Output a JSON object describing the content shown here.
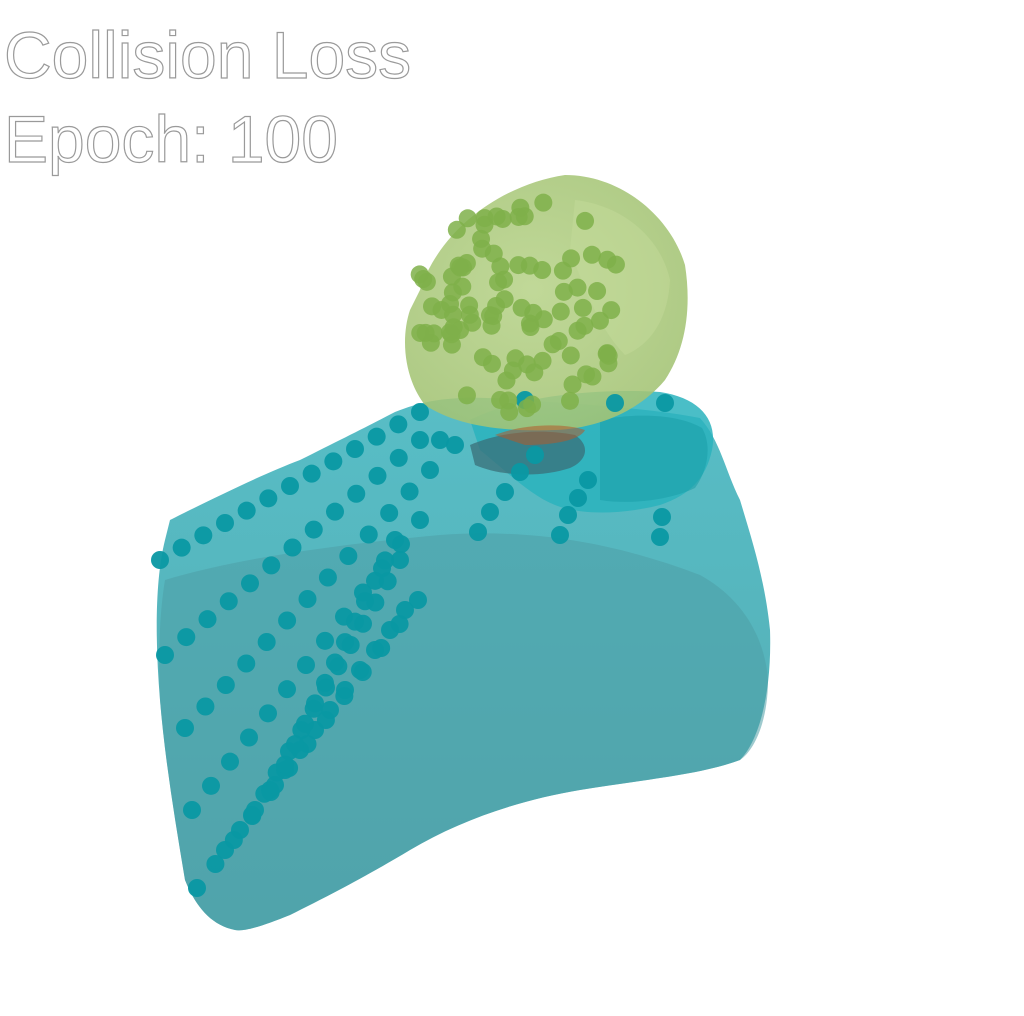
{
  "overlay": {
    "title": "Collision Loss",
    "epoch": "Epoch: 100"
  },
  "colors": {
    "background": "#ffffff",
    "teal_mesh": "#2aaab5",
    "teal_points": "#0a98a3",
    "green_mesh": "#a9c97a",
    "green_points": "#7fb04a",
    "text_outline": "#9a9a9a"
  }
}
